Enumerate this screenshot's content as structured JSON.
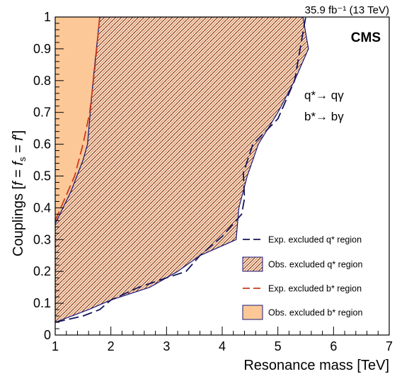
{
  "chart_data": {
    "type": "area",
    "lumi_label": "35.9 fb⁻¹ (13 TeV)",
    "experiment_label": "CMS",
    "process_labels": [
      "q*→ qγ",
      "b*→ bγ"
    ],
    "xlabel": "Resonance mass [TeV]",
    "ylabel": "Couplings [f = f_s = f′]",
    "xlim": [
      1,
      7
    ],
    "ylim": [
      0,
      1
    ],
    "x_ticks": [
      "1",
      "2",
      "3",
      "4",
      "5",
      "6",
      "7"
    ],
    "y_ticks": [
      "0",
      "0.1",
      "0.2",
      "0.3",
      "0.4",
      "0.5",
      "0.6",
      "0.7",
      "0.8",
      "0.9",
      "1"
    ],
    "grid": false,
    "legend_position": "right-bottom",
    "series": [
      {
        "name": "Exp. excluded q* region",
        "kind": "dashed-line",
        "color": "#14145a",
        "points": [
          [
            1.0,
            0.04
          ],
          [
            1.5,
            0.06
          ],
          [
            1.8,
            0.08
          ],
          [
            2.0,
            0.11
          ],
          [
            2.5,
            0.15
          ],
          [
            3.0,
            0.18
          ],
          [
            3.35,
            0.2
          ],
          [
            3.6,
            0.25
          ],
          [
            4.0,
            0.31
          ],
          [
            4.35,
            0.38
          ],
          [
            4.4,
            0.43
          ],
          [
            4.38,
            0.51
          ],
          [
            4.55,
            0.6
          ],
          [
            5.0,
            0.68
          ],
          [
            5.3,
            0.8
          ],
          [
            5.4,
            0.9
          ],
          [
            5.5,
            1.0
          ]
        ]
      },
      {
        "name": "Obs. excluded q* region",
        "kind": "hatched-area",
        "color": "#1a1a7a",
        "fill_color": "#f7c9a0",
        "boundary": [
          [
            1.0,
            0.35
          ],
          [
            1.28,
            0.45
          ],
          [
            1.5,
            0.55
          ],
          [
            1.58,
            0.6
          ],
          [
            1.68,
            0.8
          ],
          [
            1.8,
            1.0
          ],
          [
            5.45,
            1.0
          ],
          [
            5.55,
            0.9
          ],
          [
            5.3,
            0.8
          ],
          [
            5.0,
            0.7
          ],
          [
            4.65,
            0.6
          ],
          [
            4.45,
            0.5
          ],
          [
            4.3,
            0.4
          ],
          [
            4.25,
            0.3
          ],
          [
            3.6,
            0.25
          ],
          [
            3.2,
            0.2
          ],
          [
            2.7,
            0.15
          ],
          [
            2.0,
            0.11
          ],
          [
            1.6,
            0.08
          ],
          [
            1.0,
            0.04
          ]
        ]
      },
      {
        "name": "Exp. excluded b* region",
        "kind": "dashed-line",
        "color": "#cc3a1a",
        "points": [
          [
            1.0,
            0.36
          ],
          [
            1.35,
            0.5
          ],
          [
            1.5,
            0.6
          ],
          [
            1.62,
            0.7
          ],
          [
            1.72,
            0.85
          ],
          [
            1.8,
            1.0
          ]
        ]
      },
      {
        "name": "Obs. excluded b* region",
        "kind": "solid-area",
        "color": "#1a1a7a",
        "fill_color": "#fcc897",
        "boundary": [
          [
            1.0,
            1.0
          ],
          [
            1.0,
            0.35
          ],
          [
            1.28,
            0.45
          ],
          [
            1.5,
            0.55
          ],
          [
            1.58,
            0.6
          ],
          [
            1.68,
            0.8
          ],
          [
            1.8,
            1.0
          ]
        ]
      }
    ]
  }
}
